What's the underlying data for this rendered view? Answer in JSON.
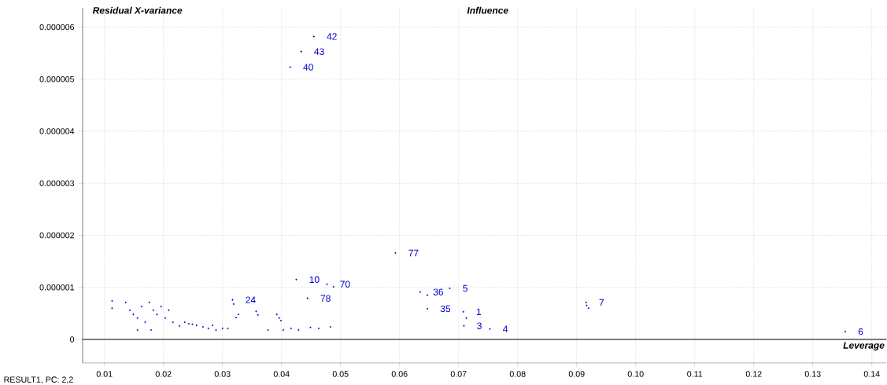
{
  "chart_data": {
    "type": "scatter",
    "title": "Influence",
    "xlabel": "Leverage",
    "ylabel": "Residual X-variance",
    "xlim": [
      0.0063,
      0.1425
    ],
    "ylim": [
      -4.5e-07,
      6.37e-06
    ],
    "xticks": [
      0.01,
      0.02,
      0.03,
      0.04,
      0.05,
      0.06,
      0.07,
      0.08,
      0.09,
      {
        "value": 0.1,
        "label": "0.10"
      },
      0.11,
      0.12,
      0.13,
      0.14
    ],
    "yticks": [
      {
        "value": 0,
        "label": "0"
      },
      {
        "value": 1e-06,
        "label": "0.000001"
      },
      {
        "value": 2e-06,
        "label": "0.000002"
      },
      {
        "value": 3e-06,
        "label": "0.000003"
      },
      {
        "value": 4e-06,
        "label": "0.000004"
      },
      {
        "value": 5e-06,
        "label": "0.000005"
      },
      {
        "value": 6e-06,
        "label": "0.000006"
      }
    ],
    "grid": true,
    "series": [
      {
        "color": "#0000cc",
        "x": [
          0.04547,
          0.04333,
          0.04147,
          0.0593,
          0.0425,
          0.0477,
          0.0488,
          0.0444,
          0.0317,
          0.0319,
          0.0635,
          0.0647,
          0.0685,
          0.0647,
          0.0708,
          0.0713,
          0.0709,
          0.0753,
          0.0916,
          0.0917,
          0.092,
          0.1355,
          0.0113,
          0.0113,
          0.0136,
          0.0143,
          0.0149,
          0.0156,
          0.0163,
          0.0169,
          0.0176,
          0.0183,
          0.0189,
          0.0196,
          0.0203,
          0.0209,
          0.0216,
          0.0156,
          0.0179,
          0.0227,
          0.0236,
          0.0243,
          0.0249,
          0.0256,
          0.0267,
          0.0276,
          0.0283,
          0.0289,
          0.03,
          0.0309,
          0.0323,
          0.0327,
          0.0357,
          0.036,
          0.0377,
          0.0392,
          0.0396,
          0.0399,
          0.0403,
          0.0416,
          0.0429,
          0.0449,
          0.0463,
          0.0483
        ],
        "values": [
          5.82e-06,
          5.53e-06,
          5.23e-06,
          1.66e-06,
          1.15e-06,
          1.06e-06,
          1.01e-06,
          7.9e-07,
          7.6e-07,
          6.8e-07,
          9.1e-07,
          8.5e-07,
          9.8e-07,
          5.9e-07,
          5.3e-07,
          4.1e-07,
          2.6e-07,
          2e-07,
          7.1e-07,
          6.5e-07,
          6e-07,
          1.5e-07,
          7.4e-07,
          6e-07,
          7.1e-07,
          5.6e-07,
          4.8e-07,
          4.1e-07,
          6.3e-07,
          3.3e-07,
          7.1e-07,
          5.6e-07,
          4.8e-07,
          6.3e-07,
          4.1e-07,
          5.6e-07,
          3.3e-07,
          1.8e-07,
          1.8e-07,
          2.6e-07,
          3.3e-07,
          3e-07,
          2.9e-07,
          2.7e-07,
          2.4e-07,
          2.1e-07,
          2.7e-07,
          1.8e-07,
          2.1e-07,
          2.1e-07,
          4.2e-07,
          4.8e-07,
          5.4e-07,
          4.7e-07,
          1.8e-07,
          4.8e-07,
          4.1e-07,
          3.6e-07,
          1.8e-07,
          2.1e-07,
          1.8e-07,
          2.3e-07,
          2.1e-07,
          2.4e-07
        ]
      }
    ],
    "annotations": [
      {
        "text": "42",
        "x": 0.04547,
        "y": 5.82e-06
      },
      {
        "text": "43",
        "x": 0.04333,
        "y": 5.53e-06
      },
      {
        "text": "40",
        "x": 0.04147,
        "y": 5.23e-06
      },
      {
        "text": "77",
        "x": 0.0593,
        "y": 1.66e-06
      },
      {
        "text": "10",
        "x": 0.0425,
        "y": 1.15e-06
      },
      {
        "text": "70",
        "x": 0.0477,
        "y": 1.06e-06
      },
      {
        "text": "78",
        "x": 0.0444,
        "y": 7.9e-07
      },
      {
        "text": "24",
        "x": 0.0317,
        "y": 7.6e-07
      },
      {
        "text": "36",
        "x": 0.0635,
        "y": 9.1e-07
      },
      {
        "text": "5",
        "x": 0.0685,
        "y": 9.8e-07
      },
      {
        "text": "35",
        "x": 0.0647,
        "y": 5.9e-07
      },
      {
        "text": "1",
        "x": 0.0708,
        "y": 5.3e-07
      },
      {
        "text": "3",
        "x": 0.0709,
        "y": 2.6e-07
      },
      {
        "text": "4",
        "x": 0.0753,
        "y": 2e-07
      },
      {
        "text": "7",
        "x": 0.0916,
        "y": 7.1e-07
      },
      {
        "text": "6",
        "x": 0.1355,
        "y": 1.5e-07
      },
      "RESULT1, PC: 2,2"
    ]
  }
}
